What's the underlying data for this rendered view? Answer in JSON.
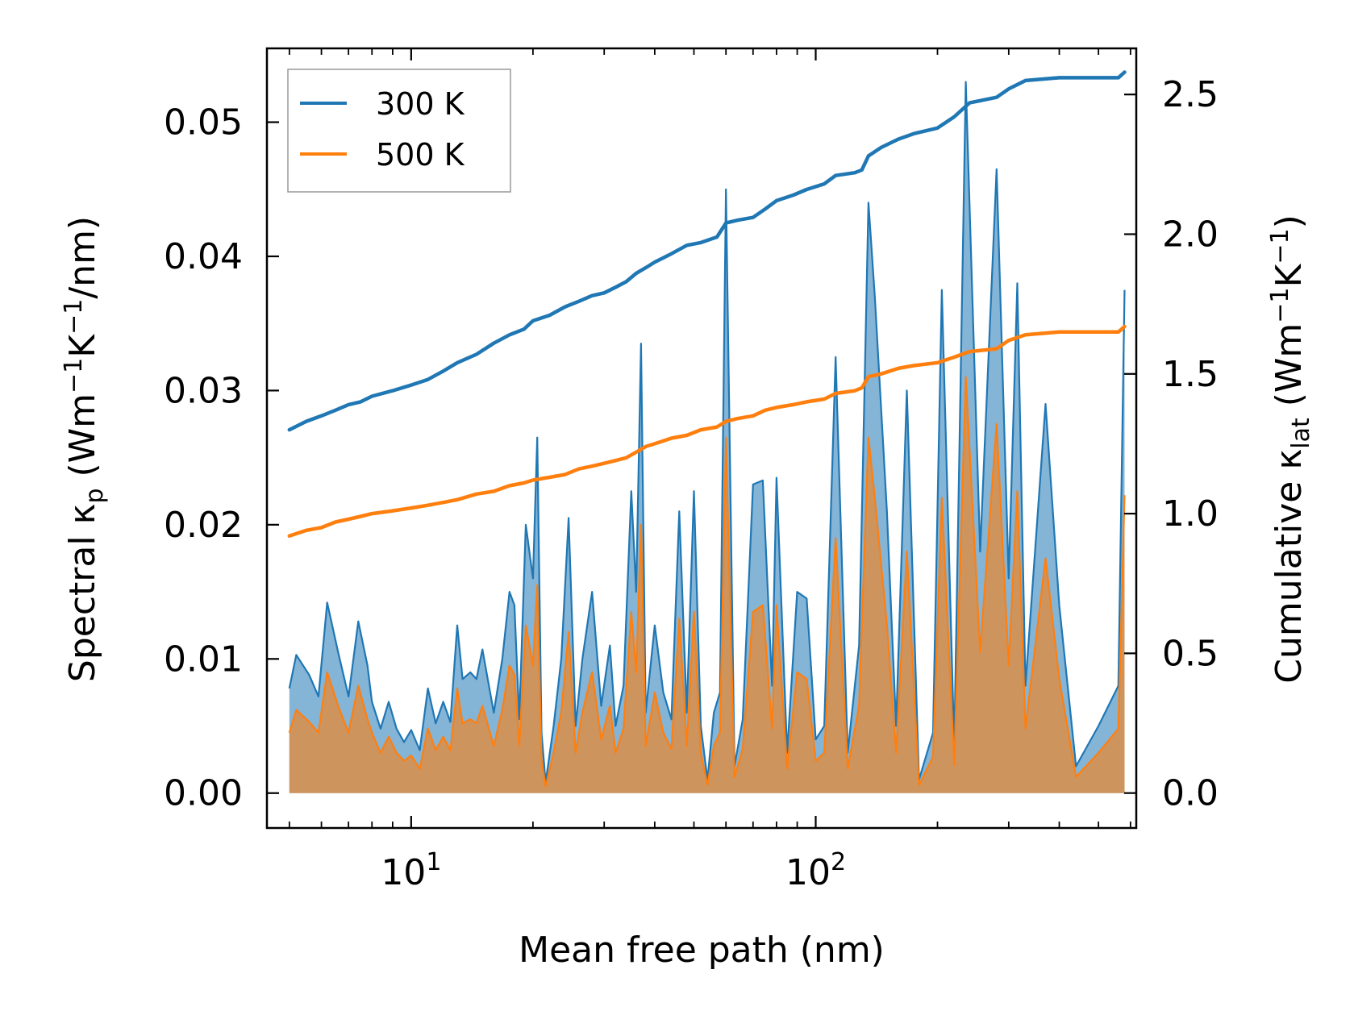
{
  "chart_data": {
    "type": "line",
    "x_scale": "log",
    "xlim": [
      4.4,
      620
    ],
    "ylim_left": [
      -0.0026,
      0.0555
    ],
    "ylim_right": [
      -0.125,
      2.665
    ],
    "xlabel": "Mean free path (nm)",
    "ylabel_left": {
      "prefix": "Spectral κ",
      "sub": "p",
      "mid": " (Wm",
      "sup1": "−1",
      "k": "K",
      "sup2": "−1",
      "suffix": "/nm)"
    },
    "ylabel_right": {
      "prefix": "Cumulative κ",
      "sub": "lat",
      "mid": " (Wm",
      "sup1": "−1",
      "k": "K",
      "sup2": "−1",
      "suffix": ")"
    },
    "x_ticks": [
      {
        "base": "10",
        "exp": "1",
        "value": 10
      },
      {
        "base": "10",
        "exp": "2",
        "value": 100
      }
    ],
    "y_ticks_left": [
      "0.00",
      "0.01",
      "0.02",
      "0.03",
      "0.04",
      "0.05"
    ],
    "y_ticks_right": [
      "0.0",
      "0.5",
      "1.0",
      "1.5",
      "2.0",
      "2.5"
    ],
    "legend": {
      "position": "upper-left",
      "entries": [
        {
          "label": "300 K",
          "color": "#1f77b4"
        },
        {
          "label": "500 K",
          "color": "#ff7f0e"
        }
      ]
    },
    "series": [
      {
        "name": "300 K",
        "color": "#1f77b4",
        "spectral": [
          [
            5.0,
            0.0078
          ],
          [
            5.2,
            0.0103
          ],
          [
            5.6,
            0.0088
          ],
          [
            5.9,
            0.0072
          ],
          [
            6.2,
            0.0142
          ],
          [
            6.6,
            0.0105
          ],
          [
            7.0,
            0.0072
          ],
          [
            7.4,
            0.0128
          ],
          [
            7.8,
            0.0095
          ],
          [
            8.0,
            0.0068
          ],
          [
            8.4,
            0.0048
          ],
          [
            8.8,
            0.0068
          ],
          [
            9.2,
            0.0048
          ],
          [
            9.6,
            0.0038
          ],
          [
            10.0,
            0.0047
          ],
          [
            10.5,
            0.0032
          ],
          [
            11.0,
            0.0078
          ],
          [
            11.5,
            0.0052
          ],
          [
            12.0,
            0.0068
          ],
          [
            12.5,
            0.0053
          ],
          [
            13.0,
            0.0125
          ],
          [
            13.4,
            0.0085
          ],
          [
            14.0,
            0.009
          ],
          [
            14.5,
            0.0085
          ],
          [
            15.0,
            0.0107
          ],
          [
            16.0,
            0.006
          ],
          [
            16.8,
            0.01
          ],
          [
            17.5,
            0.015
          ],
          [
            18.0,
            0.014
          ],
          [
            18.5,
            0.0055
          ],
          [
            19.2,
            0.02
          ],
          [
            20.0,
            0.016
          ],
          [
            20.5,
            0.0265
          ],
          [
            21.0,
            0.0045
          ],
          [
            21.5,
            0.0008
          ],
          [
            22.5,
            0.005
          ],
          [
            23.5,
            0.01
          ],
          [
            24.5,
            0.0205
          ],
          [
            25.5,
            0.005
          ],
          [
            26.5,
            0.01
          ],
          [
            28.0,
            0.015
          ],
          [
            29.5,
            0.0065
          ],
          [
            31.0,
            0.011
          ],
          [
            32.0,
            0.005
          ],
          [
            33.5,
            0.008
          ],
          [
            35.0,
            0.0225
          ],
          [
            36.0,
            0.015
          ],
          [
            37.0,
            0.0335
          ],
          [
            38.0,
            0.006
          ],
          [
            40.0,
            0.0125
          ],
          [
            42.0,
            0.0075
          ],
          [
            44.0,
            0.0055
          ],
          [
            46.0,
            0.021
          ],
          [
            48.0,
            0.006
          ],
          [
            50.0,
            0.0225
          ],
          [
            52.0,
            0.005
          ],
          [
            54.0,
            0.001
          ],
          [
            56.0,
            0.006
          ],
          [
            58.0,
            0.0075
          ],
          [
            60.0,
            0.045
          ],
          [
            63.0,
            0.002
          ],
          [
            66.0,
            0.0055
          ],
          [
            70.0,
            0.023
          ],
          [
            74.0,
            0.0233
          ],
          [
            78.0,
            0.008
          ],
          [
            80.0,
            0.0235
          ],
          [
            85.0,
            0.003
          ],
          [
            90.0,
            0.015
          ],
          [
            95.0,
            0.0145
          ],
          [
            100.0,
            0.004
          ],
          [
            105.0,
            0.005
          ],
          [
            112.0,
            0.0325
          ],
          [
            120.0,
            0.003
          ],
          [
            128.0,
            0.011
          ],
          [
            135.0,
            0.044
          ],
          [
            140.0,
            0.037
          ],
          [
            150.0,
            0.021
          ],
          [
            158.0,
            0.005
          ],
          [
            168.0,
            0.03
          ],
          [
            180.0,
            0.001
          ],
          [
            195.0,
            0.0045
          ],
          [
            205.0,
            0.0375
          ],
          [
            220.0,
            0.0035
          ],
          [
            235.0,
            0.053
          ],
          [
            255.0,
            0.018
          ],
          [
            280.0,
            0.0465
          ],
          [
            300.0,
            0.016
          ],
          [
            315.0,
            0.038
          ],
          [
            330.0,
            0.008
          ],
          [
            370.0,
            0.029
          ],
          [
            400.0,
            0.014
          ],
          [
            440.0,
            0.002
          ],
          [
            500.0,
            0.005
          ],
          [
            560.0,
            0.008
          ],
          [
            580.0,
            0.0375
          ]
        ],
        "cumulative": [
          [
            5.0,
            1.3
          ],
          [
            5.5,
            1.33
          ],
          [
            6.0,
            1.35
          ],
          [
            6.5,
            1.37
          ],
          [
            7.0,
            1.39
          ],
          [
            7.5,
            1.4
          ],
          [
            8.0,
            1.42
          ],
          [
            9.0,
            1.44
          ],
          [
            10.0,
            1.46
          ],
          [
            11.0,
            1.48
          ],
          [
            12.0,
            1.51
          ],
          [
            13.0,
            1.54
          ],
          [
            14.5,
            1.57
          ],
          [
            16.0,
            1.61
          ],
          [
            17.5,
            1.64
          ],
          [
            19.0,
            1.66
          ],
          [
            20.0,
            1.69
          ],
          [
            22.0,
            1.71
          ],
          [
            24.0,
            1.74
          ],
          [
            26.0,
            1.76
          ],
          [
            28.0,
            1.78
          ],
          [
            30.0,
            1.79
          ],
          [
            32.0,
            1.81
          ],
          [
            34.0,
            1.83
          ],
          [
            36.0,
            1.86
          ],
          [
            38.0,
            1.88
          ],
          [
            40.0,
            1.9
          ],
          [
            44.0,
            1.93
          ],
          [
            48.0,
            1.96
          ],
          [
            52.0,
            1.97
          ],
          [
            57.0,
            1.99
          ],
          [
            60.0,
            2.04
          ],
          [
            64.0,
            2.05
          ],
          [
            70.0,
            2.06
          ],
          [
            75.0,
            2.09
          ],
          [
            80.0,
            2.12
          ],
          [
            88.0,
            2.14
          ],
          [
            95.0,
            2.16
          ],
          [
            105.0,
            2.18
          ],
          [
            112.0,
            2.21
          ],
          [
            125.0,
            2.22
          ],
          [
            130.0,
            2.23
          ],
          [
            135.0,
            2.28
          ],
          [
            145.0,
            2.31
          ],
          [
            160.0,
            2.34
          ],
          [
            175.0,
            2.36
          ],
          [
            200.0,
            2.38
          ],
          [
            220.0,
            2.42
          ],
          [
            240.0,
            2.47
          ],
          [
            280.0,
            2.49
          ],
          [
            300.0,
            2.52
          ],
          [
            330.0,
            2.55
          ],
          [
            400.0,
            2.56
          ],
          [
            500.0,
            2.56
          ],
          [
            560.0,
            2.56
          ],
          [
            580.0,
            2.58
          ]
        ]
      },
      {
        "name": "500 K",
        "color": "#ff7f0e",
        "spectral": [
          [
            5.0,
            0.0045
          ],
          [
            5.2,
            0.0062
          ],
          [
            5.6,
            0.0053
          ],
          [
            5.9,
            0.0045
          ],
          [
            6.2,
            0.009
          ],
          [
            6.6,
            0.0065
          ],
          [
            7.0,
            0.0045
          ],
          [
            7.4,
            0.008
          ],
          [
            7.8,
            0.0055
          ],
          [
            8.0,
            0.0045
          ],
          [
            8.4,
            0.003
          ],
          [
            8.8,
            0.0042
          ],
          [
            9.2,
            0.003
          ],
          [
            9.6,
            0.0024
          ],
          [
            10.0,
            0.0028
          ],
          [
            10.5,
            0.0018
          ],
          [
            11.0,
            0.0048
          ],
          [
            11.5,
            0.0032
          ],
          [
            12.0,
            0.0042
          ],
          [
            12.5,
            0.0032
          ],
          [
            13.0,
            0.0078
          ],
          [
            13.4,
            0.0052
          ],
          [
            14.0,
            0.0055
          ],
          [
            14.5,
            0.0052
          ],
          [
            15.0,
            0.0065
          ],
          [
            16.0,
            0.0035
          ],
          [
            16.8,
            0.0062
          ],
          [
            17.5,
            0.0095
          ],
          [
            18.0,
            0.0088
          ],
          [
            18.5,
            0.0035
          ],
          [
            19.2,
            0.0125
          ],
          [
            20.0,
            0.0095
          ],
          [
            20.5,
            0.0155
          ],
          [
            21.0,
            0.0025
          ],
          [
            21.5,
            0.0005
          ],
          [
            22.5,
            0.003
          ],
          [
            23.5,
            0.006
          ],
          [
            24.5,
            0.012
          ],
          [
            25.5,
            0.003
          ],
          [
            26.5,
            0.006
          ],
          [
            28.0,
            0.009
          ],
          [
            29.5,
            0.004
          ],
          [
            31.0,
            0.0065
          ],
          [
            32.0,
            0.003
          ],
          [
            33.5,
            0.0048
          ],
          [
            35.0,
            0.0135
          ],
          [
            36.0,
            0.009
          ],
          [
            37.0,
            0.02
          ],
          [
            38.0,
            0.0035
          ],
          [
            40.0,
            0.0075
          ],
          [
            42.0,
            0.0045
          ],
          [
            44.0,
            0.0033
          ],
          [
            46.0,
            0.013
          ],
          [
            48.0,
            0.0035
          ],
          [
            50.0,
            0.0135
          ],
          [
            52.0,
            0.003
          ],
          [
            54.0,
            0.0006
          ],
          [
            56.0,
            0.0035
          ],
          [
            58.0,
            0.0045
          ],
          [
            60.0,
            0.0265
          ],
          [
            63.0,
            0.0012
          ],
          [
            66.0,
            0.0033
          ],
          [
            70.0,
            0.0135
          ],
          [
            74.0,
            0.014
          ],
          [
            78.0,
            0.0048
          ],
          [
            80.0,
            0.014
          ],
          [
            85.0,
            0.0018
          ],
          [
            90.0,
            0.009
          ],
          [
            95.0,
            0.0085
          ],
          [
            100.0,
            0.0024
          ],
          [
            105.0,
            0.003
          ],
          [
            112.0,
            0.019
          ],
          [
            120.0,
            0.0018
          ],
          [
            128.0,
            0.0065
          ],
          [
            135.0,
            0.0265
          ],
          [
            140.0,
            0.022
          ],
          [
            150.0,
            0.0125
          ],
          [
            158.0,
            0.003
          ],
          [
            168.0,
            0.018
          ],
          [
            180.0,
            0.0006
          ],
          [
            195.0,
            0.0027
          ],
          [
            205.0,
            0.022
          ],
          [
            220.0,
            0.0021
          ],
          [
            235.0,
            0.031
          ],
          [
            255.0,
            0.0105
          ],
          [
            280.0,
            0.0275
          ],
          [
            300.0,
            0.0095
          ],
          [
            315.0,
            0.0225
          ],
          [
            330.0,
            0.0048
          ],
          [
            370.0,
            0.0175
          ],
          [
            400.0,
            0.0085
          ],
          [
            440.0,
            0.0012
          ],
          [
            500.0,
            0.003
          ],
          [
            560.0,
            0.0048
          ],
          [
            580.0,
            0.0222
          ]
        ],
        "cumulative": [
          [
            5.0,
            0.92
          ],
          [
            5.5,
            0.94
          ],
          [
            6.0,
            0.95
          ],
          [
            6.5,
            0.97
          ],
          [
            7.0,
            0.98
          ],
          [
            7.5,
            0.99
          ],
          [
            8.0,
            1.0
          ],
          [
            9.0,
            1.01
          ],
          [
            10.0,
            1.02
          ],
          [
            11.0,
            1.03
          ],
          [
            12.0,
            1.04
          ],
          [
            13.0,
            1.05
          ],
          [
            14.5,
            1.07
          ],
          [
            16.0,
            1.08
          ],
          [
            17.5,
            1.1
          ],
          [
            19.0,
            1.11
          ],
          [
            20.0,
            1.12
          ],
          [
            22.0,
            1.13
          ],
          [
            24.0,
            1.14
          ],
          [
            26.0,
            1.16
          ],
          [
            28.0,
            1.17
          ],
          [
            30.0,
            1.18
          ],
          [
            32.0,
            1.19
          ],
          [
            34.0,
            1.2
          ],
          [
            36.0,
            1.22
          ],
          [
            38.0,
            1.24
          ],
          [
            40.0,
            1.25
          ],
          [
            44.0,
            1.27
          ],
          [
            48.0,
            1.28
          ],
          [
            52.0,
            1.3
          ],
          [
            57.0,
            1.31
          ],
          [
            60.0,
            1.33
          ],
          [
            64.0,
            1.34
          ],
          [
            70.0,
            1.35
          ],
          [
            75.0,
            1.37
          ],
          [
            80.0,
            1.38
          ],
          [
            88.0,
            1.39
          ],
          [
            95.0,
            1.4
          ],
          [
            105.0,
            1.41
          ],
          [
            112.0,
            1.43
          ],
          [
            125.0,
            1.44
          ],
          [
            130.0,
            1.45
          ],
          [
            135.0,
            1.49
          ],
          [
            145.0,
            1.5
          ],
          [
            160.0,
            1.52
          ],
          [
            175.0,
            1.53
          ],
          [
            200.0,
            1.54
          ],
          [
            220.0,
            1.56
          ],
          [
            240.0,
            1.58
          ],
          [
            280.0,
            1.59
          ],
          [
            300.0,
            1.62
          ],
          [
            330.0,
            1.64
          ],
          [
            400.0,
            1.65
          ],
          [
            500.0,
            1.65
          ],
          [
            560.0,
            1.65
          ],
          [
            580.0,
            1.67
          ]
        ]
      }
    ]
  }
}
